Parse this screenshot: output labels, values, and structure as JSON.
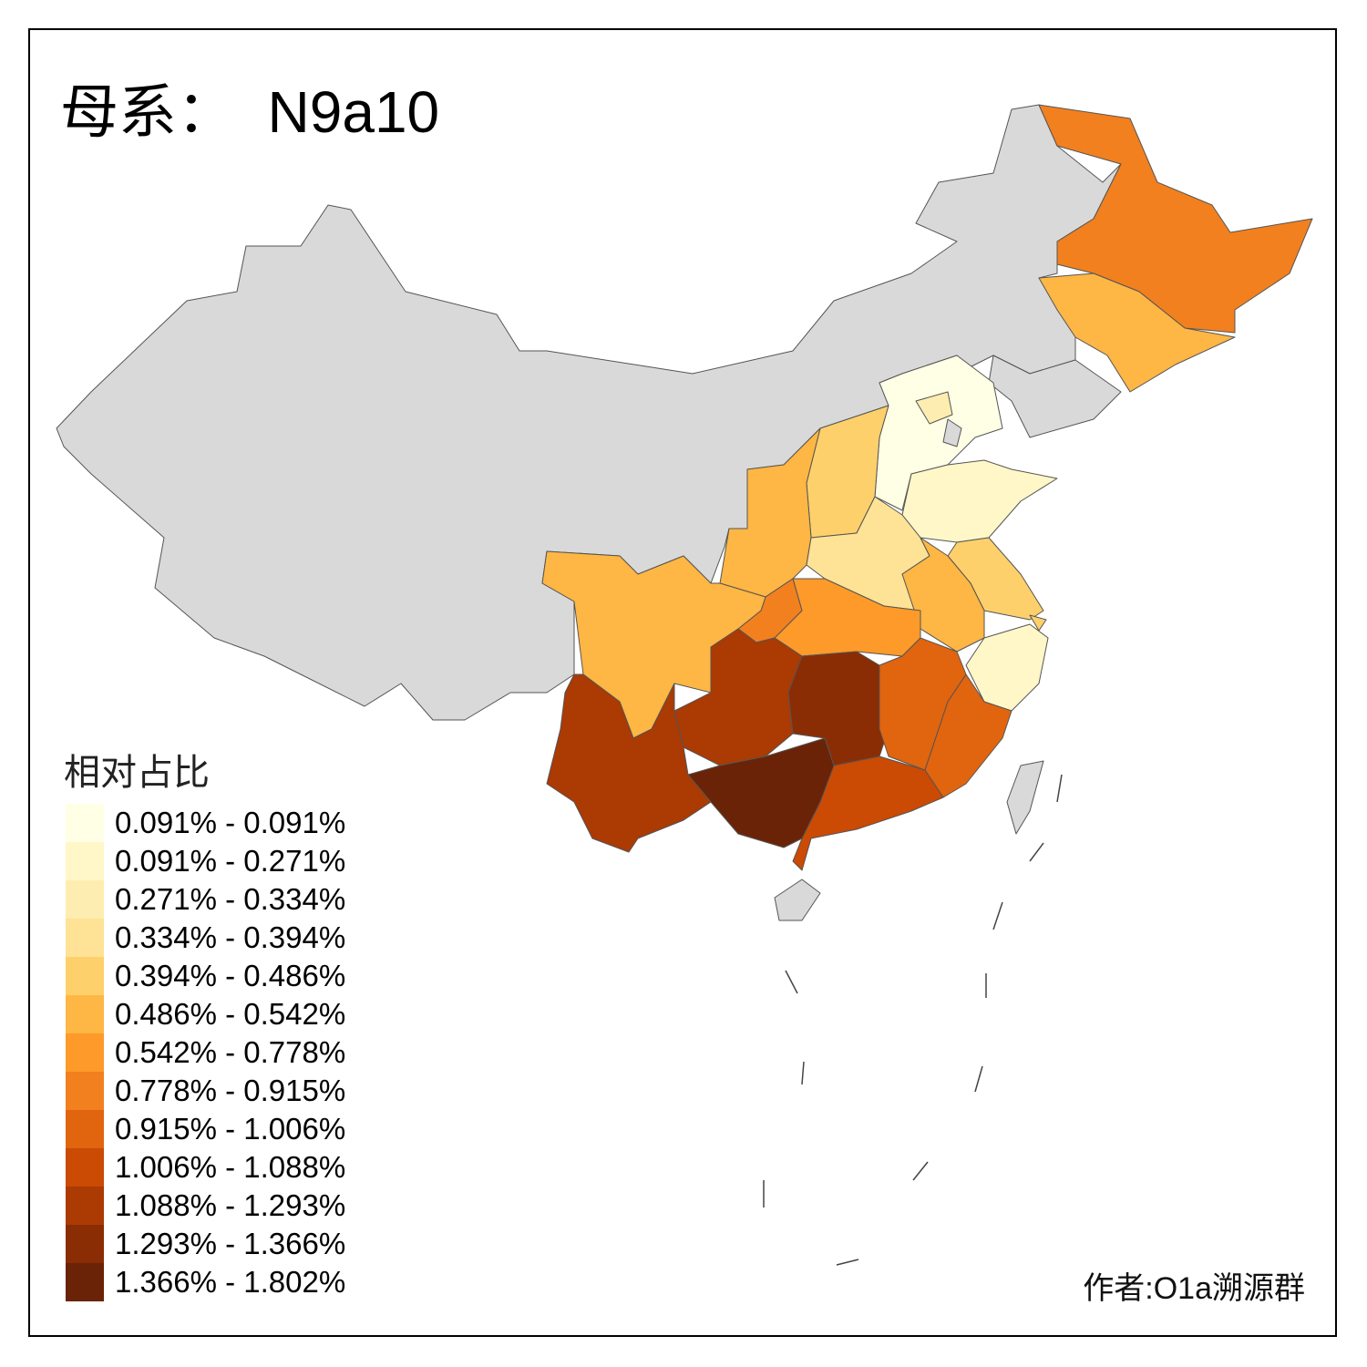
{
  "title": "母系：  N9a10",
  "legend": {
    "title": "相对占比",
    "items": [
      {
        "label": "0.091% - 0.091%",
        "color": "#FFFFE5"
      },
      {
        "label": "0.091% - 0.271%",
        "color": "#FFF7C8"
      },
      {
        "label": "0.271% - 0.334%",
        "color": "#FEEDB0"
      },
      {
        "label": "0.334% - 0.394%",
        "color": "#FEE396"
      },
      {
        "label": "0.394% - 0.486%",
        "color": "#FED06B"
      },
      {
        "label": "0.486% - 0.542%",
        "color": "#FEB644"
      },
      {
        "label": "0.542% - 0.778%",
        "color": "#FD9A2A"
      },
      {
        "label": "0.778% - 0.915%",
        "color": "#F2801F"
      },
      {
        "label": "0.915% - 1.006%",
        "color": "#E1640F"
      },
      {
        "label": "1.006% - 1.088%",
        "color": "#CB4A04"
      },
      {
        "label": "1.088% - 1.293%",
        "color": "#AB3A03"
      },
      {
        "label": "1.293% - 1.366%",
        "color": "#8A2D04"
      },
      {
        "label": "1.366% - 1.802%",
        "color": "#6A2306"
      }
    ]
  },
  "no_data_color": "#D9D9D9",
  "credit": "作者:O1a溯源群"
}
